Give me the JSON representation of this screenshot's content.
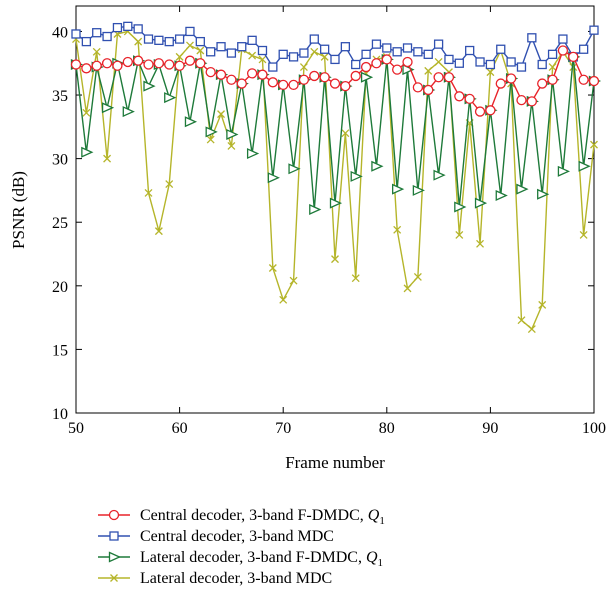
{
  "chart_data": {
    "type": "line",
    "title": "",
    "xlabel": "Frame number",
    "ylabel": "PSNR (dB)",
    "xlim": [
      50,
      100
    ],
    "ylim": [
      10,
      42
    ],
    "xticks": [
      50,
      60,
      70,
      80,
      90,
      100
    ],
    "yticks": [
      10,
      15,
      20,
      25,
      30,
      35,
      40
    ],
    "grid": false,
    "legend_position": "bottom",
    "x": [
      50,
      51,
      52,
      53,
      54,
      55,
      56,
      57,
      58,
      59,
      60,
      61,
      62,
      63,
      64,
      65,
      66,
      67,
      68,
      69,
      70,
      71,
      72,
      73,
      74,
      75,
      76,
      77,
      78,
      79,
      80,
      81,
      82,
      83,
      84,
      85,
      86,
      87,
      88,
      89,
      90,
      91,
      92,
      93,
      94,
      95,
      96,
      97,
      98,
      99,
      100
    ],
    "series": [
      {
        "name": "Central decoder, 3-band F-DMDC, ",
        "name_sub": "Q",
        "name_subscript": "1",
        "color": "#e8232a",
        "marker": "circle",
        "values": [
          37.4,
          37.1,
          37.3,
          37.5,
          37.3,
          37.6,
          37.7,
          37.4,
          37.5,
          37.4,
          37.3,
          37.7,
          37.5,
          36.8,
          36.6,
          36.2,
          35.9,
          36.7,
          36.6,
          36.0,
          35.8,
          35.8,
          36.2,
          36.5,
          36.4,
          35.9,
          35.7,
          36.5,
          37.2,
          37.5,
          37.8,
          37.0,
          37.6,
          35.6,
          35.4,
          36.4,
          36.4,
          34.9,
          34.7,
          33.7,
          33.8,
          35.9,
          36.3,
          34.6,
          34.5,
          35.9,
          36.2,
          38.5,
          38.0,
          36.2,
          36.1
        ]
      },
      {
        "name": "Central decoder, 3-band MDC",
        "color": "#3050b0",
        "marker": "square",
        "values": [
          39.8,
          39.2,
          39.9,
          39.6,
          40.3,
          40.4,
          40.2,
          39.4,
          39.3,
          39.2,
          39.4,
          40.0,
          39.2,
          38.4,
          38.8,
          38.3,
          38.8,
          39.3,
          38.5,
          37.2,
          38.2,
          38.0,
          38.3,
          39.4,
          38.6,
          37.8,
          38.8,
          37.4,
          38.2,
          39.0,
          38.7,
          38.4,
          38.7,
          38.4,
          38.2,
          39.0,
          37.8,
          37.5,
          38.5,
          37.6,
          37.4,
          38.6,
          37.6,
          37.2,
          39.5,
          37.4,
          38.2,
          39.4,
          38.0,
          38.6,
          40.1
        ]
      },
      {
        "name": "Lateral decoder, 3-band F-DMDC, ",
        "name_sub": "Q",
        "name_subscript": "1",
        "color": "#1e7a3a",
        "marker": "triangle-right",
        "values": [
          37.4,
          30.5,
          37.2,
          34.0,
          37.5,
          33.7,
          37.7,
          35.7,
          37.4,
          34.8,
          37.3,
          32.9,
          37.5,
          32.1,
          36.6,
          31.9,
          35.9,
          30.4,
          36.6,
          28.5,
          35.8,
          29.2,
          36.2,
          26.0,
          36.4,
          26.5,
          35.7,
          28.6,
          36.4,
          29.4,
          37.8,
          27.6,
          37.0,
          27.5,
          35.4,
          28.7,
          36.4,
          26.2,
          34.7,
          26.5,
          33.8,
          27.1,
          36.3,
          27.6,
          34.5,
          27.2,
          36.2,
          29.0,
          38.0,
          29.4,
          36.1
        ]
      },
      {
        "name": "Lateral decoder, 3-band MDC",
        "color": "#b5b52a",
        "marker": "x",
        "values": [
          39.4,
          33.6,
          38.4,
          30.0,
          39.8,
          40.0,
          39.2,
          27.3,
          24.3,
          28.0,
          38.0,
          38.9,
          38.5,
          31.5,
          33.5,
          31.0,
          38.6,
          38.1,
          37.8,
          21.4,
          18.9,
          20.4,
          37.2,
          38.4,
          38.0,
          22.1,
          32.0,
          20.6,
          36.7,
          37.8,
          38.0,
          24.4,
          19.8,
          20.7,
          36.9,
          37.6,
          36.8,
          24.0,
          32.8,
          23.3,
          36.8,
          38.5,
          35.9,
          17.3,
          16.6,
          18.5,
          37.2,
          38.4,
          37.2,
          24.0,
          31.1
        ]
      }
    ]
  }
}
